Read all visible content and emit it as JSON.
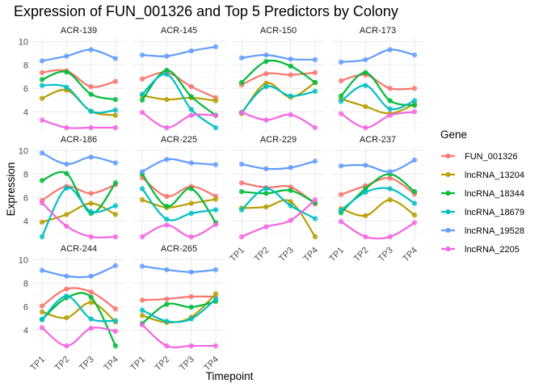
{
  "chart_data": {
    "type": "line",
    "title": "Expression of FUN_001326 and Top 5 Predictors by Colony",
    "xlabel": "Timepoint",
    "ylabel": "Expression",
    "x": [
      "TP1",
      "TP2",
      "TP3",
      "TP4"
    ],
    "ylim": [
      2.3,
      10.3
    ],
    "yticks": [
      4,
      6,
      8,
      10
    ],
    "grid": true,
    "legend": {
      "title": "Gene",
      "position": "right",
      "entries": [
        {
          "name": "FUN_001326",
          "color": "#F8766D"
        },
        {
          "name": "lncRNA_13204",
          "color": "#B79F00"
        },
        {
          "name": "lncRNA_18344",
          "color": "#00BA38"
        },
        {
          "name": "lncRNA_18679",
          "color": "#00BFC4"
        },
        {
          "name": "lncRNA_19528",
          "color": "#619CFF"
        },
        {
          "name": "lncRNA_2205",
          "color": "#F564E3"
        }
      ]
    },
    "panels": [
      {
        "colony": "ACR-139",
        "series": {
          "FUN_001326": [
            7.35,
            7.5,
            6.15,
            6.6
          ],
          "lncRNA_13204": [
            5.15,
            5.85,
            4.05,
            3.7
          ],
          "lncRNA_18344": [
            6.75,
            7.4,
            5.5,
            5.05
          ],
          "lncRNA_18679": [
            6.25,
            6.1,
            4.05,
            4.15
          ],
          "lncRNA_19528": [
            8.35,
            8.75,
            9.3,
            8.55
          ],
          "lncRNA_2205": [
            3.3,
            2.65,
            2.65,
            2.65
          ]
        }
      },
      {
        "colony": "ACR-145",
        "series": {
          "FUN_001326": [
            6.8,
            7.35,
            6.15,
            5.2
          ],
          "lncRNA_13204": [
            5.4,
            5.05,
            5.2,
            4.95
          ],
          "lncRNA_18344": [
            5.0,
            7.55,
            5.3,
            3.7
          ],
          "lncRNA_18679": [
            5.5,
            7.2,
            4.2,
            2.65
          ],
          "lncRNA_19528": [
            8.85,
            8.75,
            9.2,
            9.55
          ],
          "lncRNA_2205": [
            3.95,
            2.65,
            3.7,
            3.7
          ]
        }
      },
      {
        "colony": "ACR-150",
        "series": {
          "FUN_001326": [
            6.3,
            7.25,
            7.15,
            7.35
          ],
          "lncRNA_13204": [
            3.85,
            6.45,
            5.25,
            6.5
          ],
          "lncRNA_18344": [
            6.5,
            8.3,
            7.9,
            6.5
          ],
          "lncRNA_18679": [
            3.95,
            6.15,
            5.35,
            5.75
          ],
          "lncRNA_19528": [
            8.6,
            8.85,
            8.5,
            8.45
          ],
          "lncRNA_2205": [
            3.95,
            3.3,
            3.75,
            2.65
          ]
        }
      },
      {
        "colony": "ACR-173",
        "series": {
          "FUN_001326": [
            6.65,
            7.15,
            6.0,
            6.0
          ],
          "lncRNA_13204": [
            5.1,
            4.45,
            3.85,
            4.65
          ],
          "lncRNA_18344": [
            5.35,
            7.35,
            4.95,
            4.55
          ],
          "lncRNA_18679": [
            4.9,
            6.25,
            4.25,
            4.95
          ],
          "lncRNA_19528": [
            8.25,
            8.45,
            9.3,
            8.85
          ],
          "lncRNA_2205": [
            3.85,
            2.65,
            3.7,
            4.0
          ]
        }
      },
      {
        "colony": "ACR-186",
        "series": {
          "FUN_001326": [
            5.75,
            6.95,
            6.35,
            7.1
          ],
          "lncRNA_13204": [
            3.9,
            4.55,
            5.5,
            4.55
          ],
          "lncRNA_18344": [
            7.45,
            8.05,
            4.65,
            7.25
          ],
          "lncRNA_18679": [
            2.65,
            6.8,
            4.8,
            5.3
          ],
          "lncRNA_19528": [
            9.8,
            8.85,
            9.45,
            8.95
          ],
          "lncRNA_2205": [
            5.55,
            3.55,
            2.65,
            2.65
          ]
        }
      },
      {
        "colony": "ACR-225",
        "series": {
          "FUN_001326": [
            7.7,
            6.1,
            6.95,
            6.1
          ],
          "lncRNA_13204": [
            5.8,
            5.15,
            5.5,
            5.85
          ],
          "lncRNA_18344": [
            8.0,
            5.25,
            6.75,
            3.85
          ],
          "lncRNA_18679": [
            6.75,
            4.15,
            4.65,
            4.95
          ],
          "lncRNA_19528": [
            8.2,
            9.25,
            8.95,
            8.8
          ],
          "lncRNA_2205": [
            2.65,
            3.65,
            2.65,
            3.7
          ]
        }
      },
      {
        "colony": "ACR-229",
        "series": {
          "FUN_001326": [
            7.25,
            6.85,
            6.9,
            5.45
          ],
          "lncRNA_13204": [
            5.1,
            5.2,
            5.65,
            2.65
          ],
          "lncRNA_18344": [
            6.5,
            6.35,
            6.6,
            5.55
          ],
          "lncRNA_18679": [
            4.95,
            6.75,
            5.3,
            4.2
          ],
          "lncRNA_19528": [
            8.85,
            8.45,
            8.55,
            9.1
          ],
          "lncRNA_2205": [
            2.65,
            3.5,
            4.05,
            5.8
          ]
        }
      },
      {
        "colony": "ACR-237",
        "series": {
          "FUN_001326": [
            6.25,
            7.0,
            7.65,
            6.3
          ],
          "lncRNA_13204": [
            5.05,
            4.45,
            5.8,
            4.5
          ],
          "lncRNA_18344": [
            4.7,
            6.75,
            8.0,
            6.5
          ],
          "lncRNA_18679": [
            4.9,
            6.45,
            6.75,
            5.5
          ],
          "lncRNA_19528": [
            8.7,
            8.75,
            8.2,
            9.2
          ],
          "lncRNA_2205": [
            3.95,
            2.65,
            2.65,
            3.85
          ]
        }
      },
      {
        "colony": "ACR-244",
        "series": {
          "FUN_001326": [
            6.05,
            7.5,
            7.25,
            5.8
          ],
          "lncRNA_13204": [
            5.55,
            5.05,
            6.35,
            4.7
          ],
          "lncRNA_18344": [
            4.9,
            6.75,
            6.8,
            2.65
          ],
          "lncRNA_18679": [
            4.9,
            6.9,
            4.95,
            4.8
          ],
          "lncRNA_19528": [
            9.1,
            8.6,
            8.6,
            9.5
          ],
          "lncRNA_2205": [
            4.2,
            2.65,
            4.15,
            3.9
          ]
        }
      },
      {
        "colony": "ACR-265",
        "series": {
          "FUN_001326": [
            6.55,
            6.65,
            6.85,
            6.85
          ],
          "lncRNA_13204": [
            5.25,
            4.65,
            5.1,
            7.1
          ],
          "lncRNA_18344": [
            4.55,
            6.2,
            5.95,
            6.45
          ],
          "lncRNA_18679": [
            5.7,
            4.75,
            4.95,
            6.65
          ],
          "lncRNA_19528": [
            9.45,
            9.15,
            8.95,
            9.15
          ],
          "lncRNA_2205": [
            4.45,
            2.65,
            2.65,
            2.65
          ]
        }
      }
    ]
  }
}
